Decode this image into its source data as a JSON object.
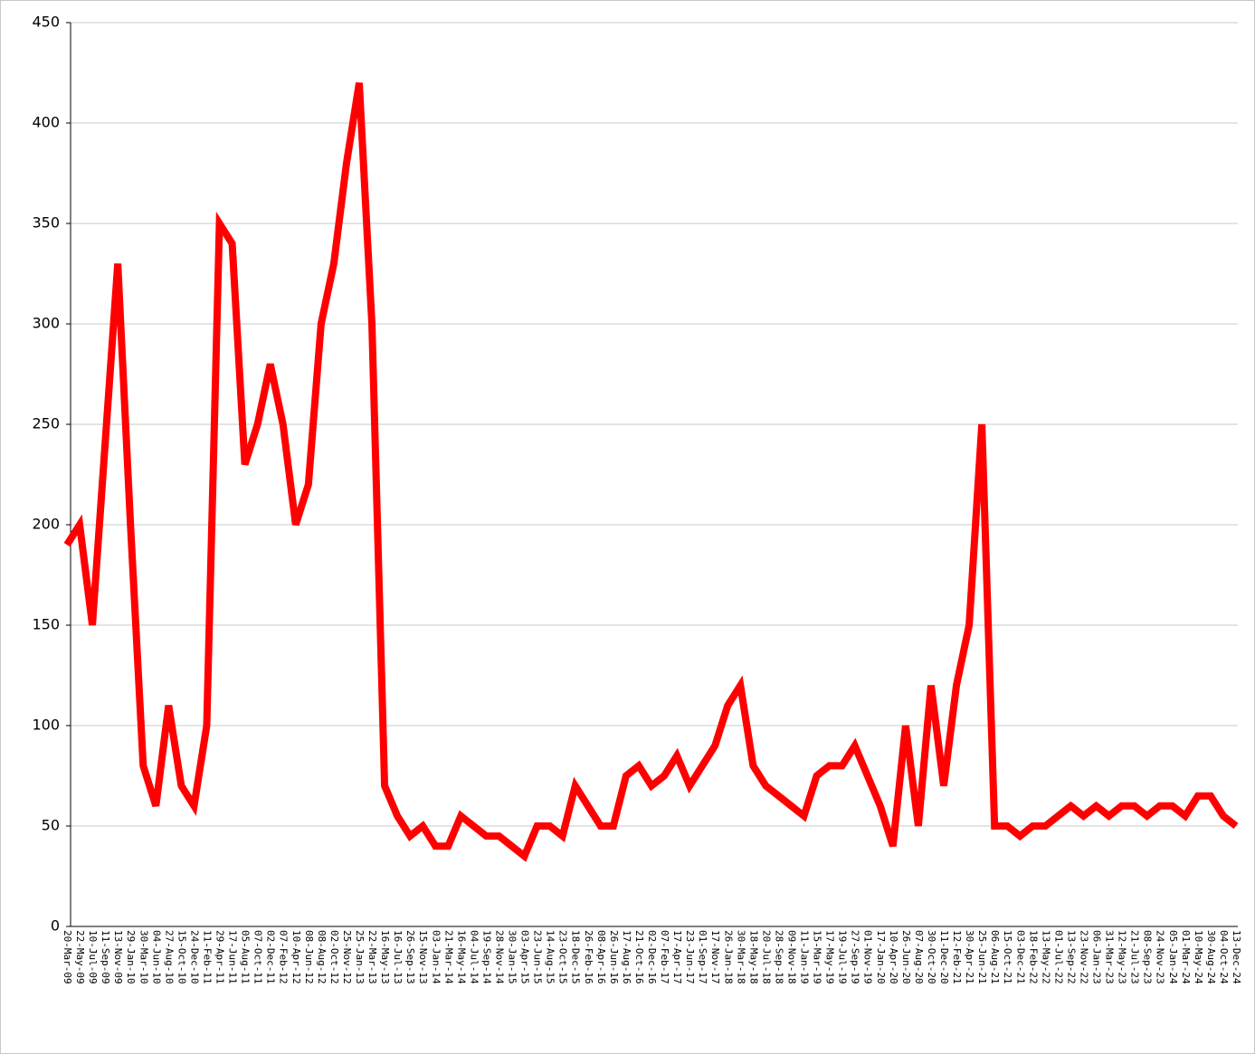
{
  "chart_data": {
    "type": "line",
    "categories": [
      "20-Mar-09",
      "22-May-09",
      "10-Jul-09",
      "11-Sep-09",
      "13-Nov-09",
      "29-Jan-10",
      "30-Mar-10",
      "04-Jun-10",
      "27-Aug-10",
      "15-Oct-10",
      "24-Dec-10",
      "11-Feb-11",
      "29-Apr-11",
      "17-Jun-11",
      "05-Aug-11",
      "07-Oct-11",
      "02-Dec-11",
      "07-Feb-12",
      "10-Apr-12",
      "08-Jun-12",
      "08-Aug-12",
      "02-Oct-12",
      "25-Nov-12",
      "25-Jan-13",
      "22-Mar-13",
      "16-May-13",
      "16-Jul-13",
      "26-Sep-13",
      "15-Nov-13",
      "03-Jan-14",
      "21-Mar-14",
      "16-May-14",
      "04-Jul-14",
      "19-Sep-14",
      "28-Nov-14",
      "30-Jan-15",
      "03-Apr-15",
      "23-Jun-15",
      "14-Aug-15",
      "23-Oct-15",
      "18-Dec-15",
      "26-Feb-16",
      "08-Apr-16",
      "26-Jun-16",
      "17-Aug-16",
      "21-Oct-16",
      "02-Dec-16",
      "07-Feb-17",
      "17-Apr-17",
      "23-Jun-17",
      "01-Sep-17",
      "17-Nov-17",
      "26-Jan-18",
      "30-Mar-18",
      "18-May-18",
      "20-Jul-18",
      "28-Sep-18",
      "09-Nov-18",
      "11-Jan-19",
      "15-Mar-19",
      "17-May-19",
      "19-Jul-19",
      "27-Sep-19",
      "01-Nov-19",
      "17-Jan-20",
      "10-Apr-20",
      "26-Jun-20",
      "07-Aug-20",
      "30-Oct-20",
      "11-Dec-20",
      "12-Feb-21",
      "30-Apr-21",
      "25-Jun-21",
      "06-Aug-21",
      "15-Oct-21",
      "03-Dec-21",
      "18-Feb-22",
      "13-May-22",
      "01-Jul-22",
      "13-Sep-22",
      "23-Nov-22",
      "06-Jan-23",
      "31-Mar-23",
      "12-May-23",
      "21-Jul-23",
      "08-Sep-23",
      "24-Nov-23",
      "05-Jan-24",
      "01-Mar-24",
      "10-May-24",
      "30-Aug-24",
      "04-Oct-24",
      "13-Dec-24"
    ],
    "series": [
      {
        "color": "#ff0000",
        "values": [
          190,
          200,
          150,
          240,
          330,
          200,
          80,
          60,
          110,
          70,
          60,
          100,
          350,
          340,
          230,
          250,
          280,
          250,
          200,
          220,
          300,
          330,
          380,
          420,
          300,
          70,
          55,
          45,
          50,
          40,
          40,
          55,
          50,
          45,
          45,
          40,
          35,
          50,
          50,
          45,
          70,
          60,
          50,
          50,
          75,
          80,
          70,
          75,
          85,
          70,
          80,
          90,
          110,
          120,
          80,
          70,
          65,
          60,
          55,
          75,
          80,
          80,
          90,
          75,
          60,
          40,
          100,
          50,
          120,
          70,
          120,
          150,
          250,
          50,
          50,
          45,
          50,
          50,
          55,
          60,
          55,
          60,
          55,
          60,
          60,
          55,
          60,
          60,
          55,
          65,
          65,
          55,
          50
        ]
      }
    ],
    "ylim": [
      0,
      450
    ],
    "yticks": [
      0,
      50,
      100,
      150,
      200,
      250,
      300,
      350,
      400,
      450
    ],
    "grid": true
  }
}
